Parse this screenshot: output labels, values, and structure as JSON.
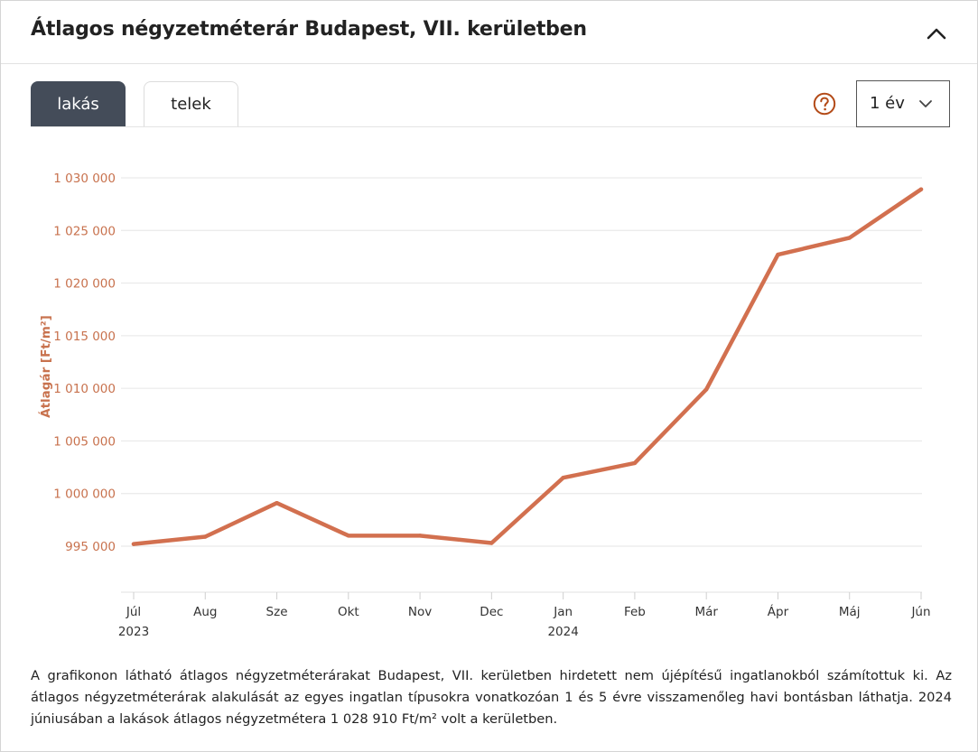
{
  "header": {
    "title": "Átlagos négyzetméterár Budapest, VII. kerületben",
    "collapse_icon": "chevron-up-icon"
  },
  "tabs": [
    {
      "label": "lakás",
      "active": true
    },
    {
      "label": "telek",
      "active": false
    }
  ],
  "controls": {
    "help_icon": "question-circle-icon",
    "period_select": {
      "value": "1 év",
      "icon": "chevron-down-icon"
    }
  },
  "colors": {
    "accent": "#d2704f",
    "tab_active": "#444c59",
    "help": "#b34a17",
    "axis_text": "#c8724e"
  },
  "chart_data": {
    "type": "line",
    "ylabel": "Átlagár [Ft/m²]",
    "xlabel": "",
    "ylim": [
      990000,
      1030000
    ],
    "yticks": [
      995000,
      1000000,
      1005000,
      1010000,
      1015000,
      1020000,
      1025000,
      1030000
    ],
    "ytick_labels": [
      "995 000",
      "1 000 000",
      "1 005 000",
      "1 010 000",
      "1 015 000",
      "1 020 000",
      "1 025 000",
      "1 030 000"
    ],
    "categories": [
      "Júl",
      "Aug",
      "Sze",
      "Okt",
      "Nov",
      "Dec",
      "Jan",
      "Feb",
      "Már",
      "Ápr",
      "Máj",
      "Jún"
    ],
    "year_labels": [
      {
        "index": 0,
        "label": "2023"
      },
      {
        "index": 6,
        "label": "2024"
      }
    ],
    "series": [
      {
        "name": "lakás",
        "values": [
          995200,
          995900,
          999100,
          996000,
          996000,
          995300,
          1001500,
          1002900,
          1009900,
          1022700,
          1024300,
          1028910
        ]
      }
    ],
    "grid": true,
    "legend": "none"
  },
  "description": "A grafikonon látható átlagos négyzetméterárakat Budapest, VII. kerületben hirdetett nem újépítésű ingatlanokból számítottuk ki. Az átlagos négyzetméterárak alakulását az egyes ingatlan típusokra vonatkozóan 1 és 5 évre visszamenőleg havi bontásban láthatja. 2024 júniusában a lakások átlagos négyzetmétera 1 028 910 Ft/m² volt a kerületben."
}
